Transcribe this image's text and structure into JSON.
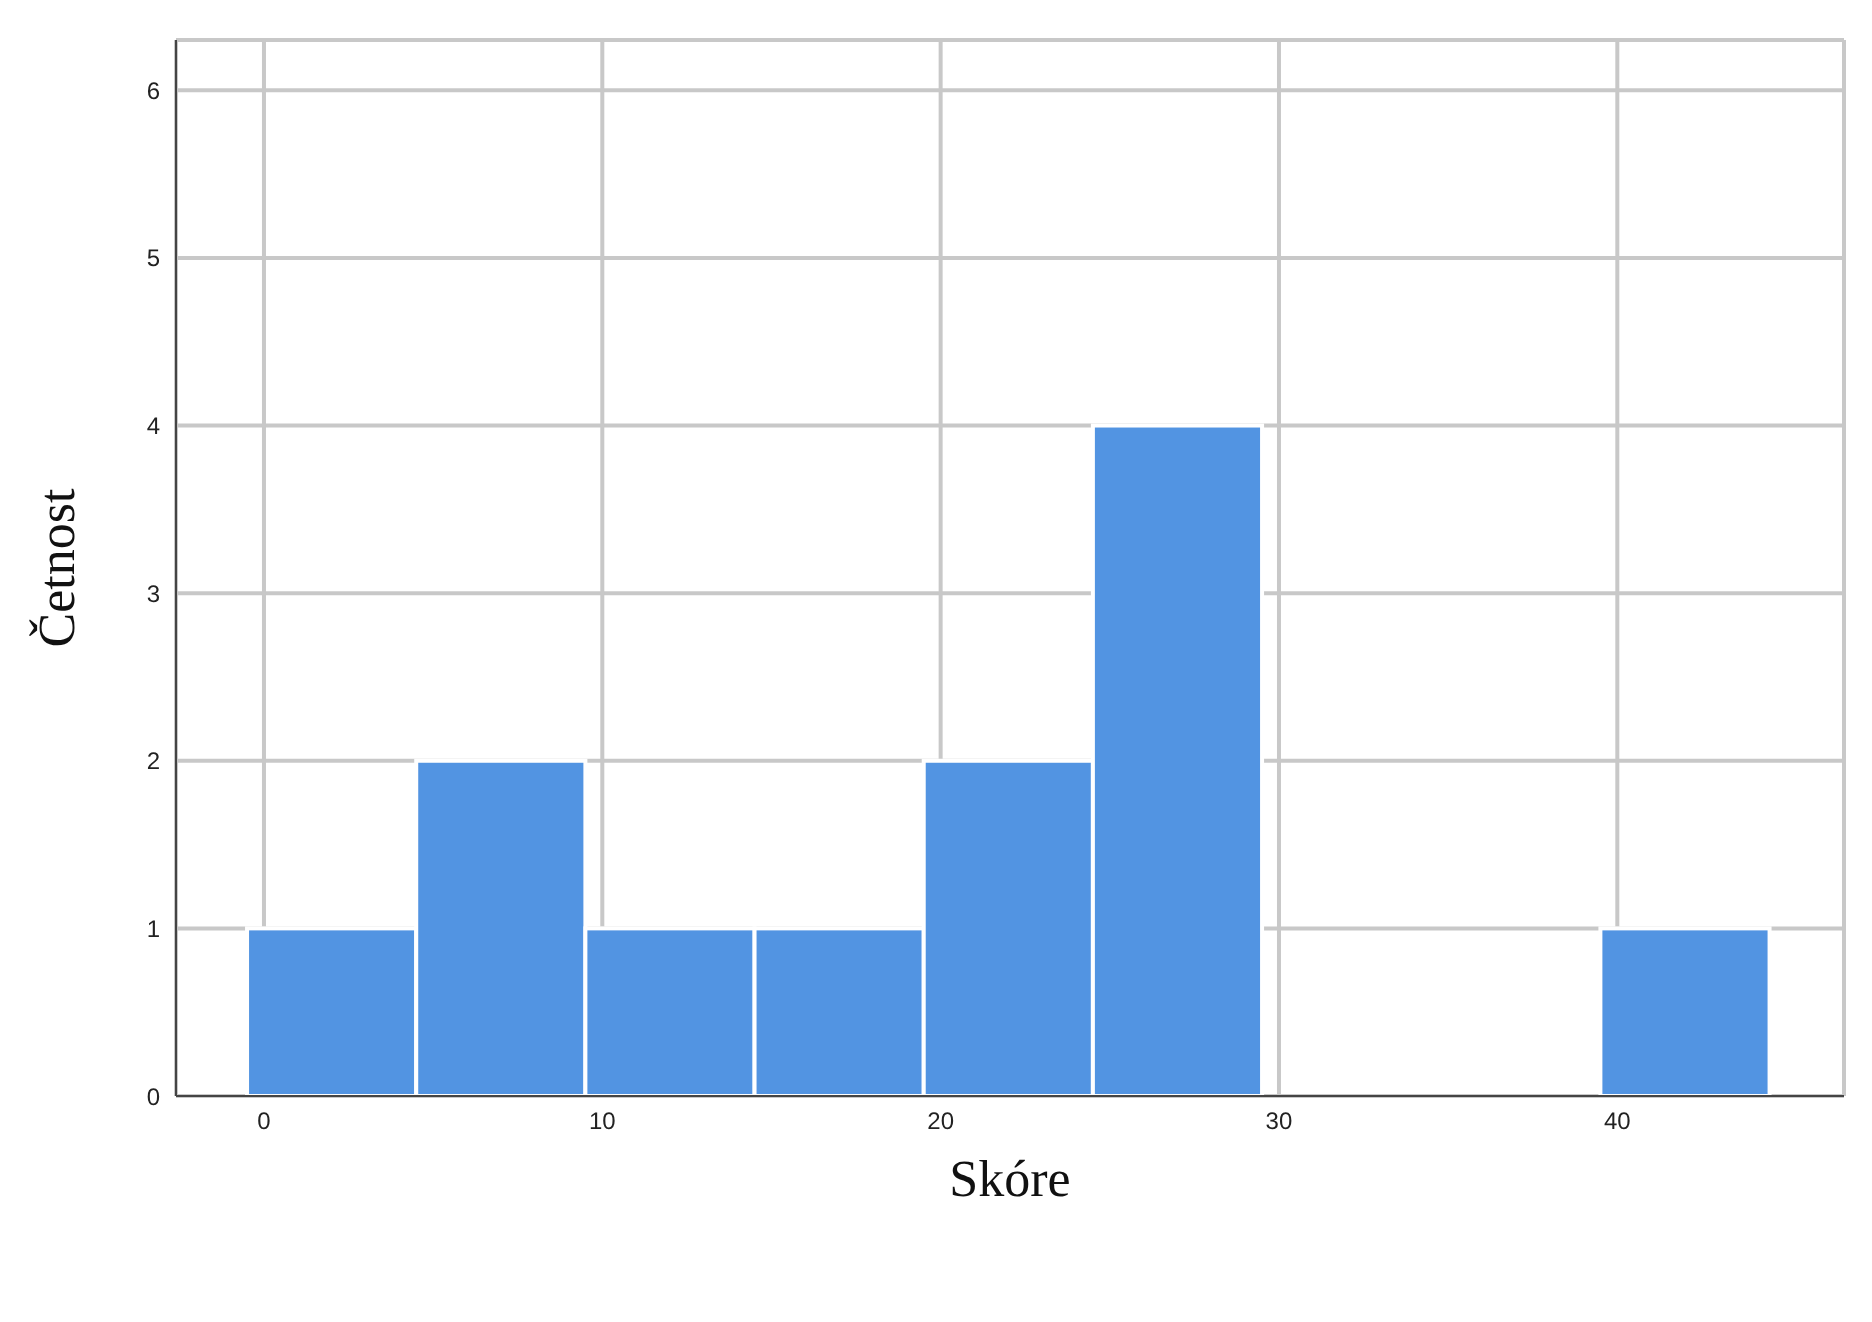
{
  "chart_data": {
    "type": "histogram",
    "xlabel": "Skóre",
    "ylabel": "Četnost",
    "bins": [
      -0.5,
      4.5,
      9.5,
      14.5,
      19.5,
      24.5,
      29.5,
      34.5,
      39.5,
      44.5
    ],
    "values": [
      1,
      2,
      1,
      1,
      2,
      4,
      0,
      0,
      1
    ],
    "color": "#5294e2",
    "xlim": [
      -2.6,
      46.7
    ],
    "xticks": [
      0,
      10,
      20,
      30,
      40
    ],
    "ylim": [
      0,
      6.3
    ],
    "yticks": [
      0,
      1,
      2,
      3,
      4,
      5,
      6
    ],
    "grid": true
  }
}
